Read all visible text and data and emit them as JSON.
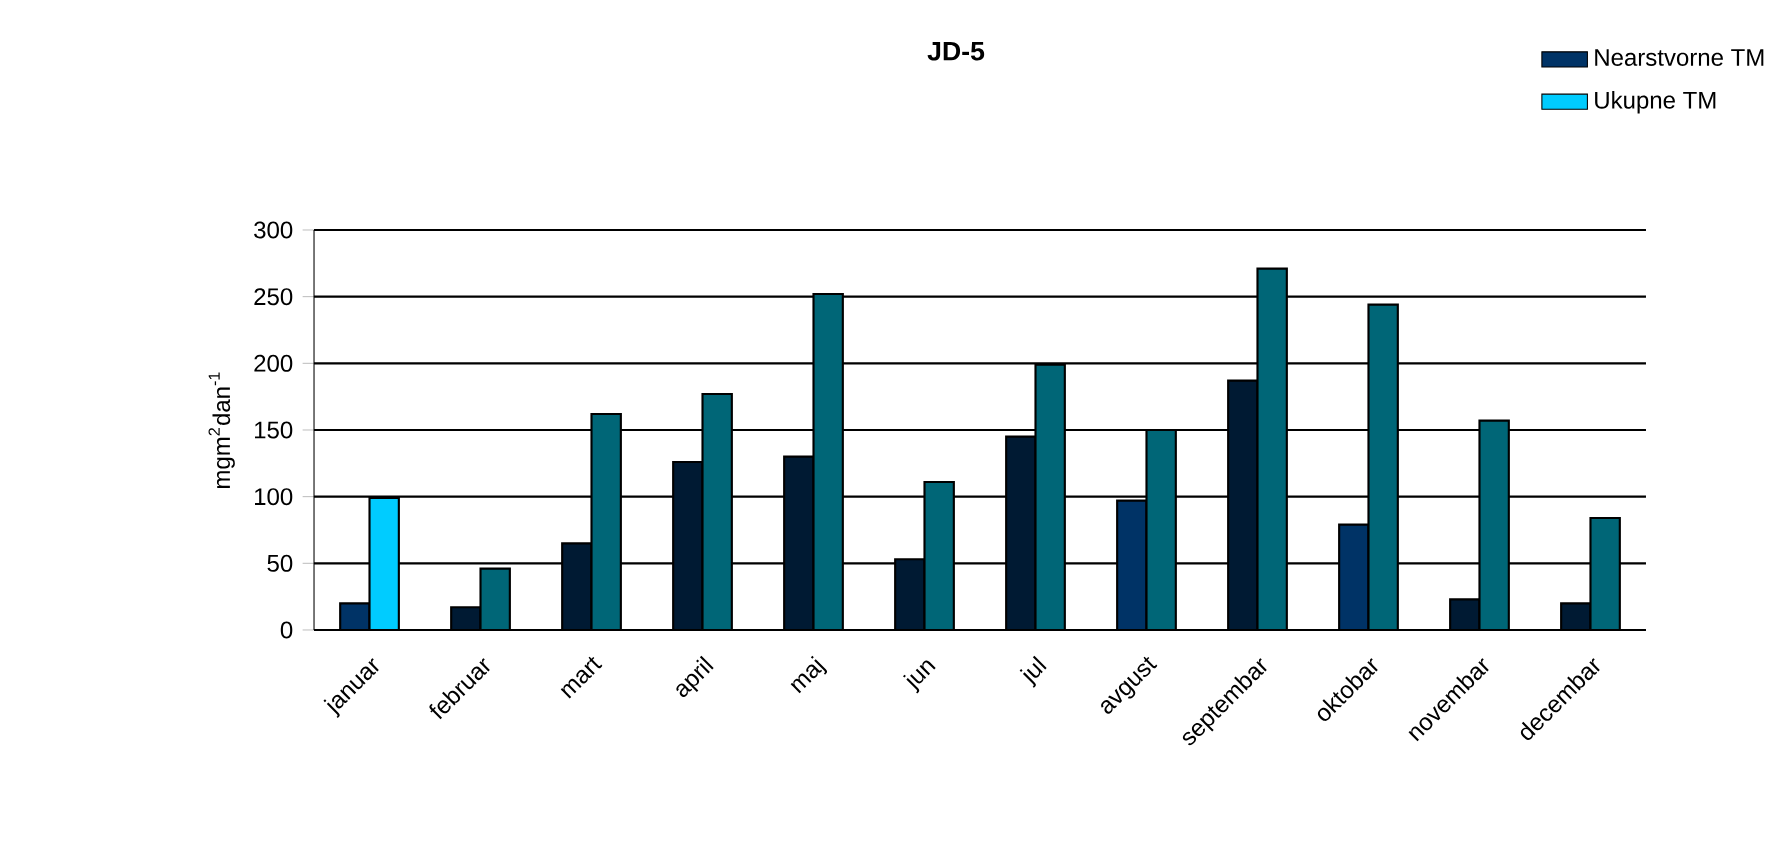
{
  "chart_data": {
    "type": "bar",
    "title": "JD-5",
    "ylabel": "mgm$^{2}$dan$^{-1}$",
    "categories": [
      "januar",
      "februar",
      "mart",
      "april",
      "maj",
      "jun",
      "jul",
      "avgust",
      "septembar",
      "oktobar",
      "novembar",
      "decembar"
    ],
    "series": [
      {
        "name": "Nearstvorne TM",
        "color": "#003366",
        "colors": [
          "#003366",
          "#001a33",
          "#001a33",
          "#001a33",
          "#001a33",
          "#001a33",
          "#001a33",
          "#003366",
          "#001a33",
          "#003366",
          "#001a33",
          "#001a33"
        ],
        "values": [
          20,
          17,
          65,
          126,
          130,
          53,
          145,
          97,
          187,
          79,
          23,
          20
        ]
      },
      {
        "name": "Ukupne TM",
        "color": "#00ccff",
        "colors": [
          "#00ccff",
          "#006677",
          "#006677",
          "#006677",
          "#006677",
          "#006677",
          "#006677",
          "#006677",
          "#006677",
          "#006677",
          "#006677",
          "#006677"
        ],
        "values": [
          99,
          46,
          162,
          177,
          252,
          111,
          199,
          150,
          271,
          244,
          157,
          84
        ]
      }
    ],
    "ylim": [
      0,
      300
    ],
    "yticks": [
      0,
      50,
      100,
      150,
      200,
      250,
      300
    ],
    "grid": "y",
    "legend": "top right"
  }
}
